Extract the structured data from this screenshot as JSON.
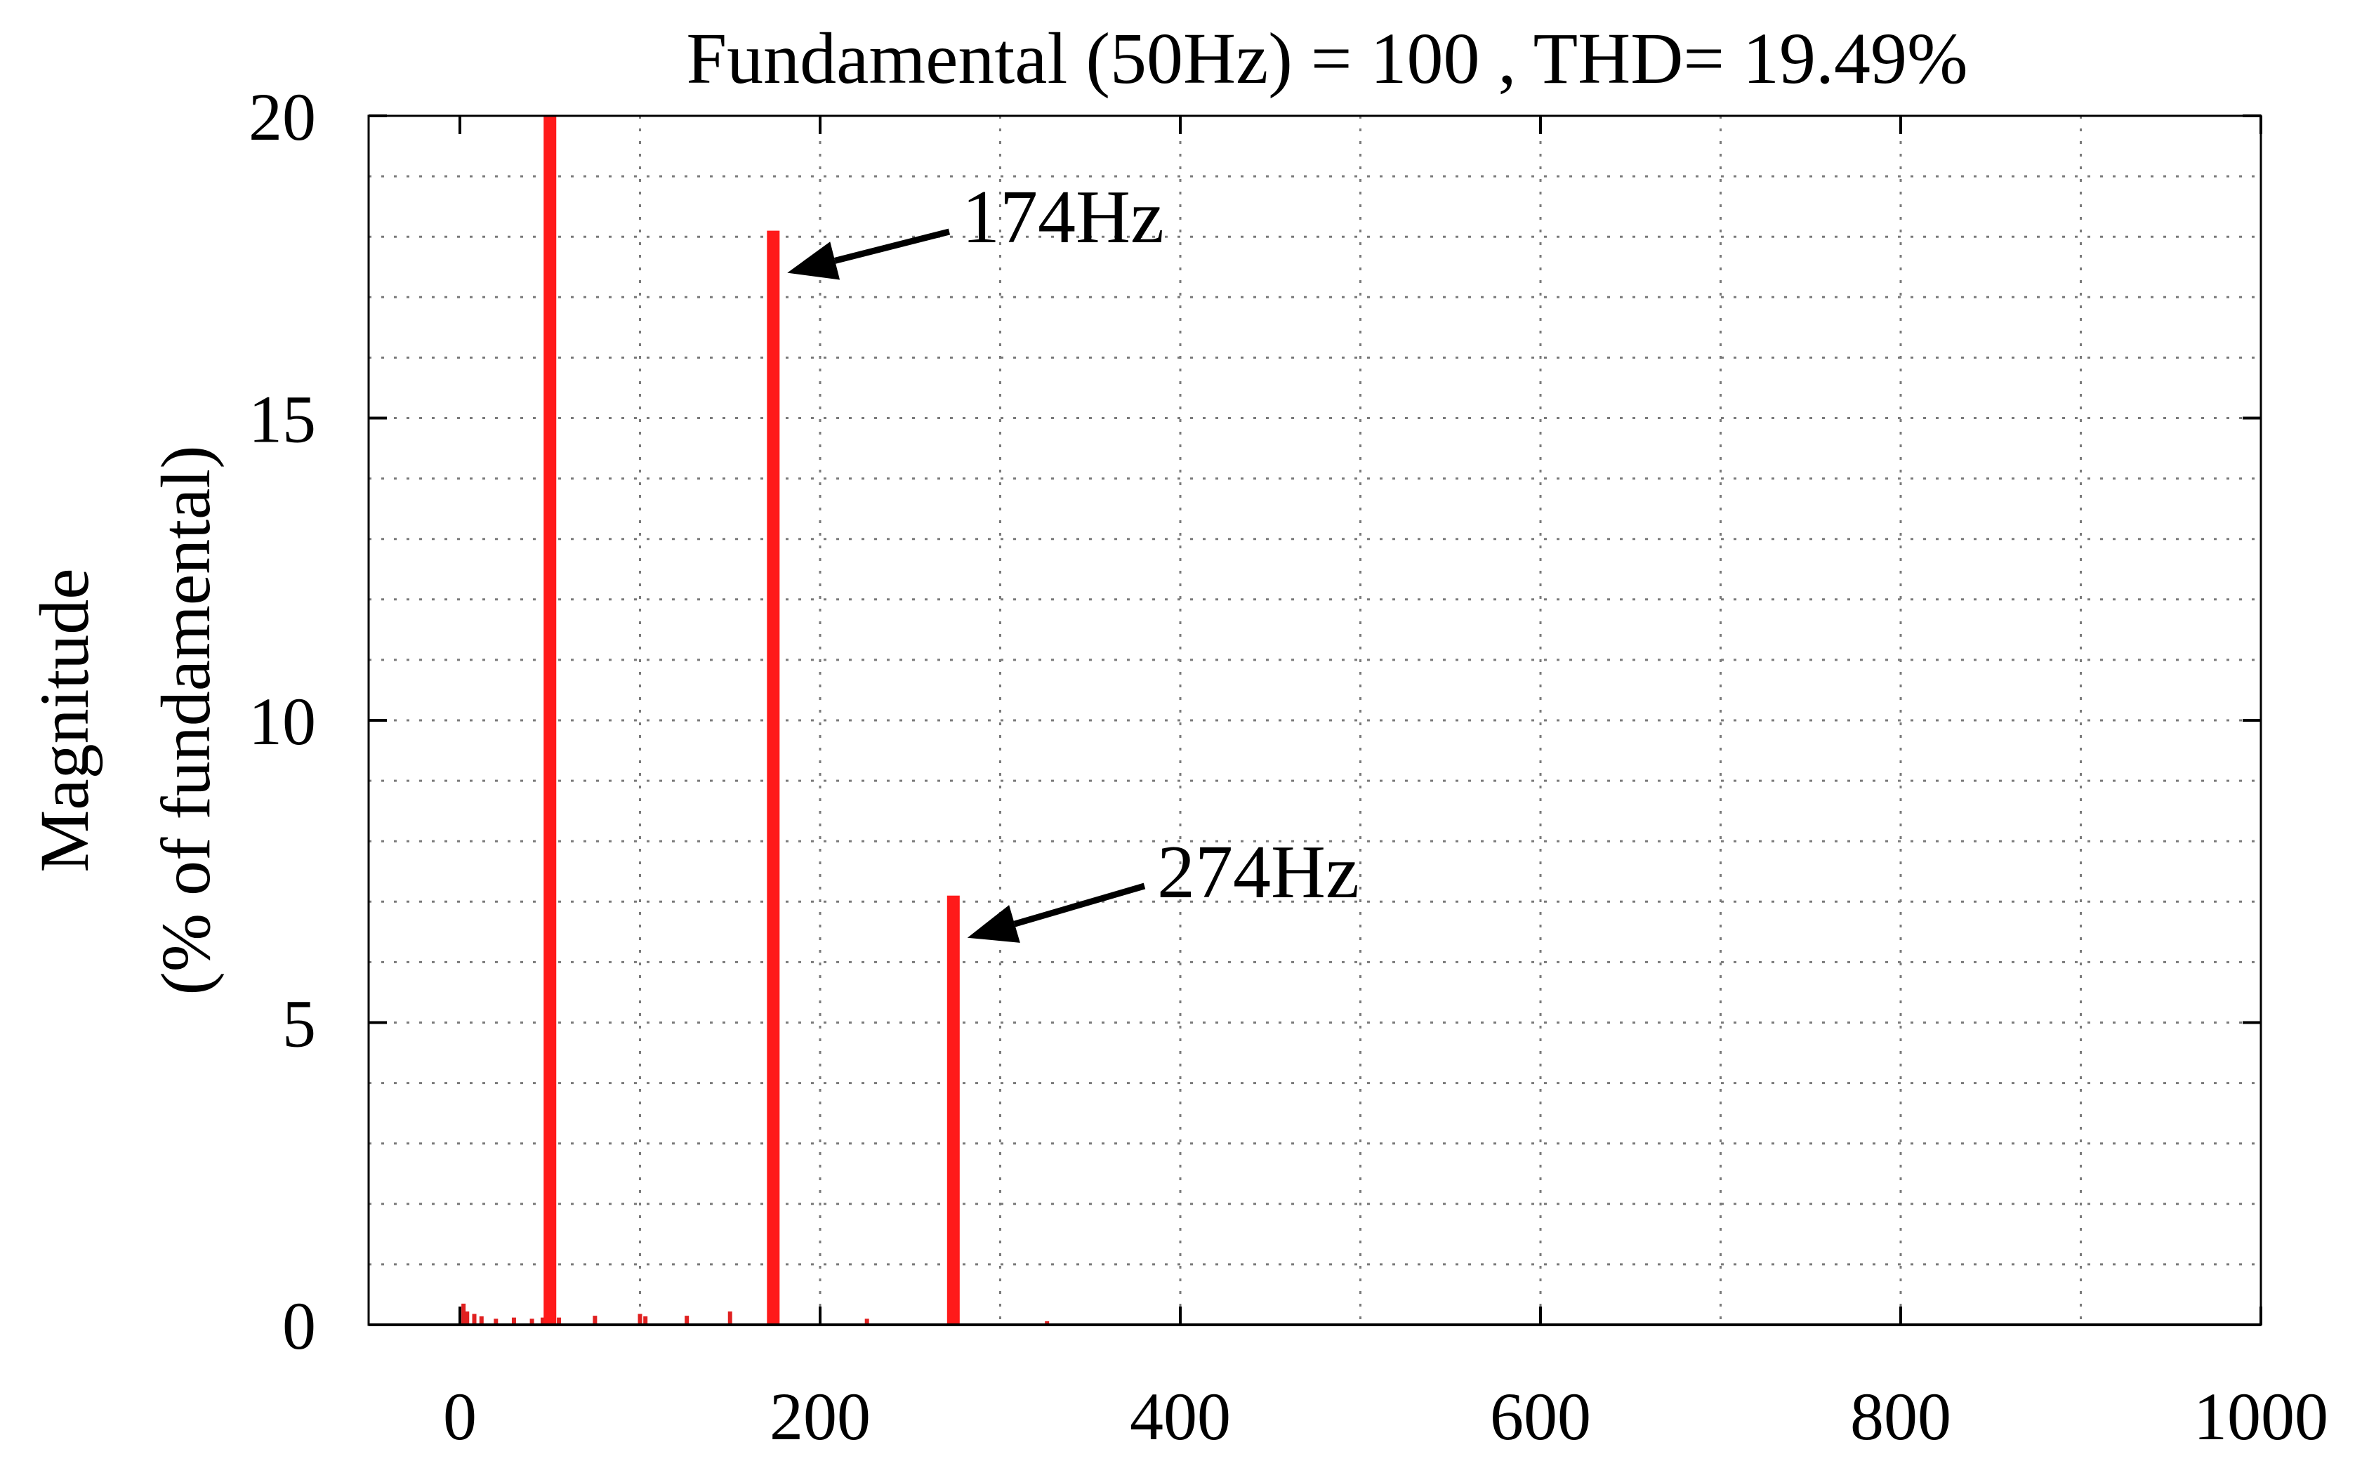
{
  "chart_data": {
    "type": "bar",
    "title": "Fundamental (50Hz) = 100 , THD= 19.49%",
    "xlabel": "",
    "ylabel": [
      "Magnitude",
      "(% of fundamental)"
    ],
    "xlim": [
      0,
      1000
    ],
    "ylim": [
      0,
      20
    ],
    "xticks": [
      0,
      200,
      400,
      600,
      800,
      1000
    ],
    "yticks": [
      0,
      5,
      10,
      15,
      20
    ],
    "grid": true,
    "bar_color": "#ff1a1a",
    "noise_color": "#e02020",
    "bars": [
      {
        "x": 50,
        "y": 20
      },
      {
        "x": 174,
        "y": 18.1
      },
      {
        "x": 274,
        "y": 7.1
      }
    ],
    "noise": [
      {
        "x": 2,
        "y": 0.35
      },
      {
        "x": 4,
        "y": 0.22
      },
      {
        "x": 8,
        "y": 0.18
      },
      {
        "x": 12,
        "y": 0.14
      },
      {
        "x": 20,
        "y": 0.1
      },
      {
        "x": 30,
        "y": 0.12
      },
      {
        "x": 40,
        "y": 0.1
      },
      {
        "x": 46,
        "y": 0.12
      },
      {
        "x": 55,
        "y": 0.12
      },
      {
        "x": 75,
        "y": 0.15
      },
      {
        "x": 100,
        "y": 0.18
      },
      {
        "x": 103,
        "y": 0.14
      },
      {
        "x": 126,
        "y": 0.15
      },
      {
        "x": 150,
        "y": 0.22
      },
      {
        "x": 226,
        "y": 0.1
      },
      {
        "x": 326,
        "y": 0.06
      }
    ],
    "annotations": [
      {
        "text": "174Hz",
        "x": 174,
        "y": 18.1
      },
      {
        "text": "274Hz",
        "x": 274,
        "y": 7.1
      }
    ]
  }
}
